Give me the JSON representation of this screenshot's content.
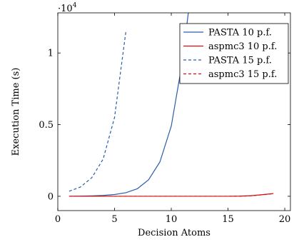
{
  "chart_data": {
    "type": "line",
    "title": "",
    "xlabel": "Decision Atoms",
    "ylabel": "Execution Time (s)",
    "y_scale_label": "·10^4",
    "y_scale_factor": 10000,
    "xlim": [
      0,
      20.5
    ],
    "ylim": [
      -1000,
      12800
    ],
    "xticks": [
      0,
      5,
      10,
      15,
      20
    ],
    "yticks": [
      0,
      5000,
      10000
    ],
    "ytick_labels": [
      "0",
      "0.5",
      "1"
    ],
    "grid": false,
    "legend_position": "top-right",
    "series": [
      {
        "name": "PASTA 10 p.f.",
        "color": "#2a5da8",
        "dash": "solid",
        "points": [
          [
            1,
            0
          ],
          [
            2,
            10
          ],
          [
            3,
            30
          ],
          [
            4,
            60
          ],
          [
            5,
            120
          ],
          [
            6,
            250
          ],
          [
            7,
            520
          ],
          [
            8,
            1150
          ],
          [
            9,
            2400
          ],
          [
            10,
            4900
          ],
          [
            11,
            9500
          ],
          [
            11.5,
            12800
          ]
        ]
      },
      {
        "name": "aspmc3 10 p.f.",
        "color": "#d01010",
        "dash": "solid",
        "points": [
          [
            1,
            0
          ],
          [
            3,
            0
          ],
          [
            5,
            0
          ],
          [
            7,
            0
          ],
          [
            9,
            0
          ],
          [
            11,
            0
          ],
          [
            13,
            0
          ],
          [
            15,
            0
          ],
          [
            16,
            10
          ],
          [
            17,
            40
          ],
          [
            18,
            110
          ],
          [
            19,
            190
          ]
        ]
      },
      {
        "name": "PASTA 15 p.f.",
        "color": "#2a5da8",
        "dash": "dashed",
        "points": [
          [
            1,
            350
          ],
          [
            2,
            650
          ],
          [
            3,
            1300
          ],
          [
            4,
            2600
          ],
          [
            5,
            5500
          ],
          [
            6,
            11500
          ]
        ]
      },
      {
        "name": "aspmc3 15 p.f.",
        "color": "#d01010",
        "dash": "dashed",
        "points": [
          [
            1,
            0
          ],
          [
            3,
            0
          ],
          [
            5,
            0
          ],
          [
            7,
            0
          ],
          [
            9,
            0
          ],
          [
            11,
            0
          ],
          [
            13,
            0
          ],
          [
            15,
            0
          ],
          [
            16,
            5
          ],
          [
            17,
            30
          ],
          [
            18,
            100
          ],
          [
            19,
            180
          ]
        ]
      }
    ]
  }
}
